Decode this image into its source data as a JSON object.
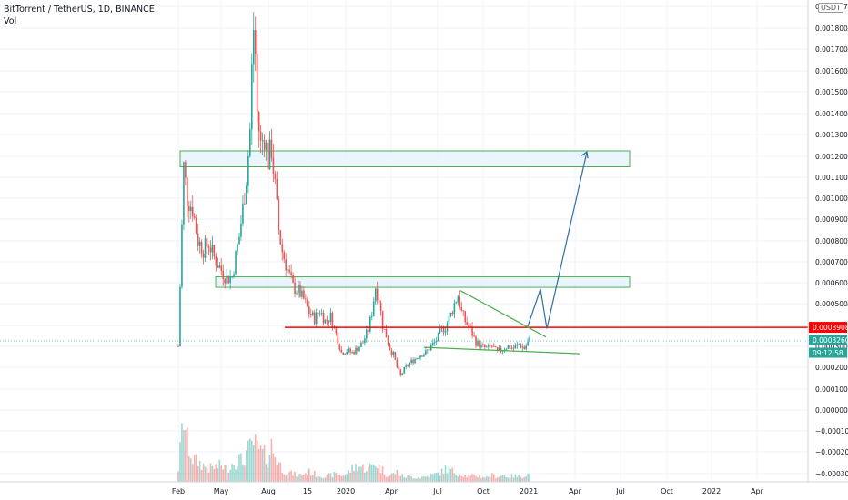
{
  "header": {
    "title": "BitTorrent / TetherUS, 1D, BINANCE",
    "vol_label": "Vol",
    "currency_button": "USDT"
  },
  "colors": {
    "up": "#26a69a",
    "down": "#ef5350",
    "support_line": "#ff0000",
    "zone_border": "#4caf50",
    "zone_fill": "#e3f2fd",
    "projection": "#2f6ea5",
    "last_price_tag": "#26a69a",
    "level_tag": "#ff0000"
  },
  "chart_data": {
    "type": "candlestick",
    "title": "BitTorrent / TetherUS, 1D, BINANCE",
    "x_tick_labels": [
      "Feb",
      "May",
      "Aug",
      "15",
      "2020",
      "Apr",
      "Jul",
      "Oct",
      "2021",
      "Apr",
      "Jul",
      "Oct",
      "2022",
      "Apr"
    ],
    "y_tick_labels": [
      "0.0019270",
      "0.0018000",
      "0.0017000",
      "0.0016000",
      "0.0015000",
      "0.0014000",
      "0.0013000",
      "0.0012000",
      "0.0011000",
      "0.0010000",
      "0.0009000",
      "0.0008000",
      "0.0007000",
      "0.0006000",
      "0.0005000",
      "0.0004000",
      "0.0003000",
      "0.0002000",
      "0.0001000",
      "0.0000000",
      "−0.0001000",
      "−0.0002000",
      "−0.0003000"
    ],
    "y_ticks": [
      0.001927,
      0.0018,
      0.0017,
      0.0016,
      0.0015,
      0.0014,
      0.0013,
      0.0012,
      0.0011,
      0.001,
      0.0009,
      0.0008,
      0.0007,
      0.0006,
      0.0005,
      0.0004,
      0.0003,
      0.0002,
      0.0001,
      0.0,
      -0.0001,
      -0.0002,
      -0.0003
    ],
    "ylim": [
      -0.00035,
      0.00193
    ],
    "close_path": [
      [
        0,
        0.0003
      ],
      [
        3,
        0.00115
      ],
      [
        5,
        0.001
      ],
      [
        8,
        0.00095
      ],
      [
        11,
        0.0008
      ],
      [
        14,
        0.00076
      ],
      [
        17,
        0.00079
      ],
      [
        20,
        0.00072
      ],
      [
        24,
        0.00066
      ],
      [
        27,
        0.00062
      ],
      [
        30,
        0.00063
      ],
      [
        34,
        0.00082
      ],
      [
        36,
        0.00095
      ],
      [
        38,
        0.0011
      ],
      [
        40,
        0.00132
      ],
      [
        41,
        0.0016
      ],
      [
        42,
        0.0018
      ],
      [
        43,
        0.00168
      ],
      [
        44,
        0.0014
      ],
      [
        46,
        0.00125
      ],
      [
        48,
        0.0013
      ],
      [
        50,
        0.00118
      ],
      [
        52,
        0.00124
      ],
      [
        54,
        0.00105
      ],
      [
        56,
        0.00085
      ],
      [
        58,
        0.00075
      ],
      [
        61,
        0.00066
      ],
      [
        64,
        0.00058
      ],
      [
        67,
        0.00056
      ],
      [
        70,
        0.00052
      ],
      [
        73,
        0.00046
      ],
      [
        76,
        0.00043
      ],
      [
        79,
        0.00047
      ],
      [
        82,
        0.00042
      ],
      [
        85,
        0.00044
      ],
      [
        88,
        0.00036
      ],
      [
        91,
        0.00027
      ],
      [
        94,
        0.00028
      ],
      [
        97,
        0.00027
      ],
      [
        100,
        0.00029
      ],
      [
        103,
        0.00032
      ],
      [
        106,
        0.00038
      ],
      [
        108,
        0.00046
      ],
      [
        110,
        0.00058
      ],
      [
        112,
        0.00052
      ],
      [
        114,
        0.0004
      ],
      [
        116,
        0.00035
      ],
      [
        118,
        0.00029
      ],
      [
        120,
        0.00026
      ],
      [
        122,
        0.0002
      ],
      [
        124,
        0.00016
      ],
      [
        126,
        0.00019
      ],
      [
        129,
        0.00022
      ],
      [
        132,
        0.00024
      ],
      [
        135,
        0.00026
      ],
      [
        138,
        0.00027
      ],
      [
        141,
        0.0003
      ],
      [
        144,
        0.00033
      ],
      [
        147,
        0.00038
      ],
      [
        149,
        0.00039
      ],
      [
        152,
        0.00045
      ],
      [
        154,
        0.0005
      ],
      [
        156,
        0.00054
      ],
      [
        158,
        0.00046
      ],
      [
        160,
        0.00042
      ],
      [
        163,
        0.00038
      ],
      [
        166,
        0.00032
      ],
      [
        169,
        0.0003
      ],
      [
        172,
        0.00029
      ],
      [
        175,
        0.0003
      ],
      [
        178,
        0.00027
      ],
      [
        181,
        0.00029
      ],
      [
        184,
        0.0003
      ],
      [
        187,
        0.00029
      ],
      [
        190,
        0.00031
      ],
      [
        193,
        0.00029
      ],
      [
        196,
        0.00033
      ]
    ],
    "volume_path": [
      [
        0,
        0.2
      ],
      [
        3,
        1.0
      ],
      [
        5,
        0.6
      ],
      [
        8,
        0.35
      ],
      [
        11,
        0.3
      ],
      [
        14,
        0.25
      ],
      [
        17,
        0.2
      ],
      [
        20,
        0.22
      ],
      [
        24,
        0.25
      ],
      [
        27,
        0.2
      ],
      [
        30,
        0.28
      ],
      [
        34,
        0.35
      ],
      [
        36,
        0.3
      ],
      [
        38,
        0.45
      ],
      [
        40,
        0.5
      ],
      [
        42,
        0.6
      ],
      [
        44,
        0.5
      ],
      [
        46,
        0.45
      ],
      [
        48,
        0.4
      ],
      [
        50,
        0.35
      ],
      [
        52,
        0.55
      ],
      [
        54,
        0.4
      ],
      [
        56,
        0.3
      ],
      [
        58,
        0.2
      ],
      [
        61,
        0.15
      ],
      [
        64,
        0.12
      ],
      [
        67,
        0.1
      ],
      [
        70,
        0.12
      ],
      [
        73,
        0.15
      ],
      [
        76,
        0.12
      ],
      [
        79,
        0.1
      ],
      [
        82,
        0.08
      ],
      [
        85,
        0.1
      ],
      [
        88,
        0.12
      ],
      [
        91,
        0.1
      ],
      [
        94,
        0.12
      ],
      [
        97,
        0.2
      ],
      [
        100,
        0.25
      ],
      [
        103,
        0.22
      ],
      [
        106,
        0.2
      ],
      [
        108,
        0.25
      ],
      [
        110,
        0.3
      ],
      [
        112,
        0.22
      ],
      [
        114,
        0.18
      ],
      [
        116,
        0.12
      ],
      [
        118,
        0.1
      ],
      [
        120,
        0.12
      ],
      [
        122,
        0.15
      ],
      [
        124,
        0.1
      ],
      [
        126,
        0.08
      ],
      [
        129,
        0.08
      ],
      [
        132,
        0.07
      ],
      [
        135,
        0.07
      ],
      [
        138,
        0.08
      ],
      [
        141,
        0.1
      ],
      [
        144,
        0.12
      ],
      [
        147,
        0.15
      ],
      [
        149,
        0.2
      ],
      [
        152,
        0.18
      ],
      [
        154,
        0.15
      ],
      [
        156,
        0.13
      ],
      [
        158,
        0.12
      ],
      [
        160,
        0.1
      ],
      [
        163,
        0.08
      ],
      [
        166,
        0.1
      ],
      [
        169,
        0.08
      ],
      [
        172,
        0.07
      ],
      [
        175,
        0.1
      ],
      [
        178,
        0.08
      ],
      [
        181,
        0.1
      ],
      [
        184,
        0.08
      ],
      [
        187,
        0.09
      ],
      [
        190,
        0.08
      ],
      [
        193,
        0.1
      ],
      [
        196,
        0.12
      ]
    ],
    "volume_max_share_of_pane": 0.4,
    "price_labels": {
      "support_level": "0.0003908",
      "last_price": "0.0003260",
      "countdown": "09:12:58"
    },
    "support_level_value": 0.000391,
    "last_price_value": 0.000326,
    "resistance_zones": [
      {
        "y1": 0.00115,
        "y2": 0.001225
      },
      {
        "y1": 0.000578,
        "y2": 0.000628
      }
    ],
    "triangle_upper": [
      [
        0.000562,
        0.000345
      ]
    ],
    "triangle_lower": [
      [
        0.000295,
        0.000265
      ]
    ],
    "projection_arrow_values": [
      0.000395,
      0.00057,
      0.000385,
      0.00122
    ]
  }
}
